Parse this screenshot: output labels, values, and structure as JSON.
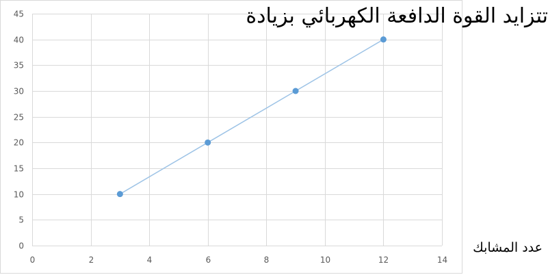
{
  "caption": "تتزايد القوة الدافعة الكهربائي  بزيادة عدد لفات الملف",
  "xlabel": "عدد المشابك",
  "chart_data": {
    "type": "line",
    "x": [
      3,
      6,
      9,
      12
    ],
    "series": [
      {
        "values": [
          10,
          20,
          30,
          40
        ]
      }
    ],
    "xlim": [
      0,
      14
    ],
    "ylim": [
      0,
      45
    ],
    "xticks": [
      0,
      2,
      4,
      6,
      8,
      10,
      12,
      14
    ],
    "yticks": [
      0,
      5,
      10,
      15,
      20,
      25,
      30,
      35,
      40,
      45
    ],
    "grid": true,
    "line_color": "#9dc3e6",
    "marker_color": "#5b9bd5",
    "grid_color": "#d9d9d9",
    "axis_label_color": "#595959"
  }
}
